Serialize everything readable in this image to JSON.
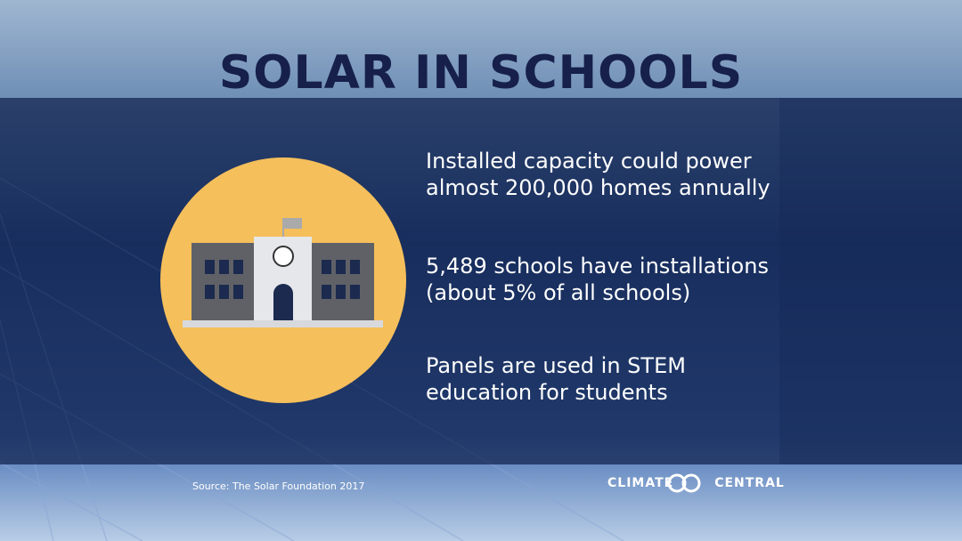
{
  "header": {
    "title": "SOLAR IN SCHOOLS"
  },
  "facts": [
    {
      "lines": [
        "Installed capacity could power",
        "almost 200,000 homes annually"
      ]
    },
    {
      "lines": [
        "5,489 schools have installations",
        "(about 5% of all schools)"
      ]
    },
    {
      "lines": [
        "Panels are used in STEM",
        "education for students"
      ]
    }
  ],
  "footer": {
    "source": "Source:  The Solar Foundation 2017",
    "logo_left": "CLIMATE",
    "logo_right": "CENTRAL"
  }
}
